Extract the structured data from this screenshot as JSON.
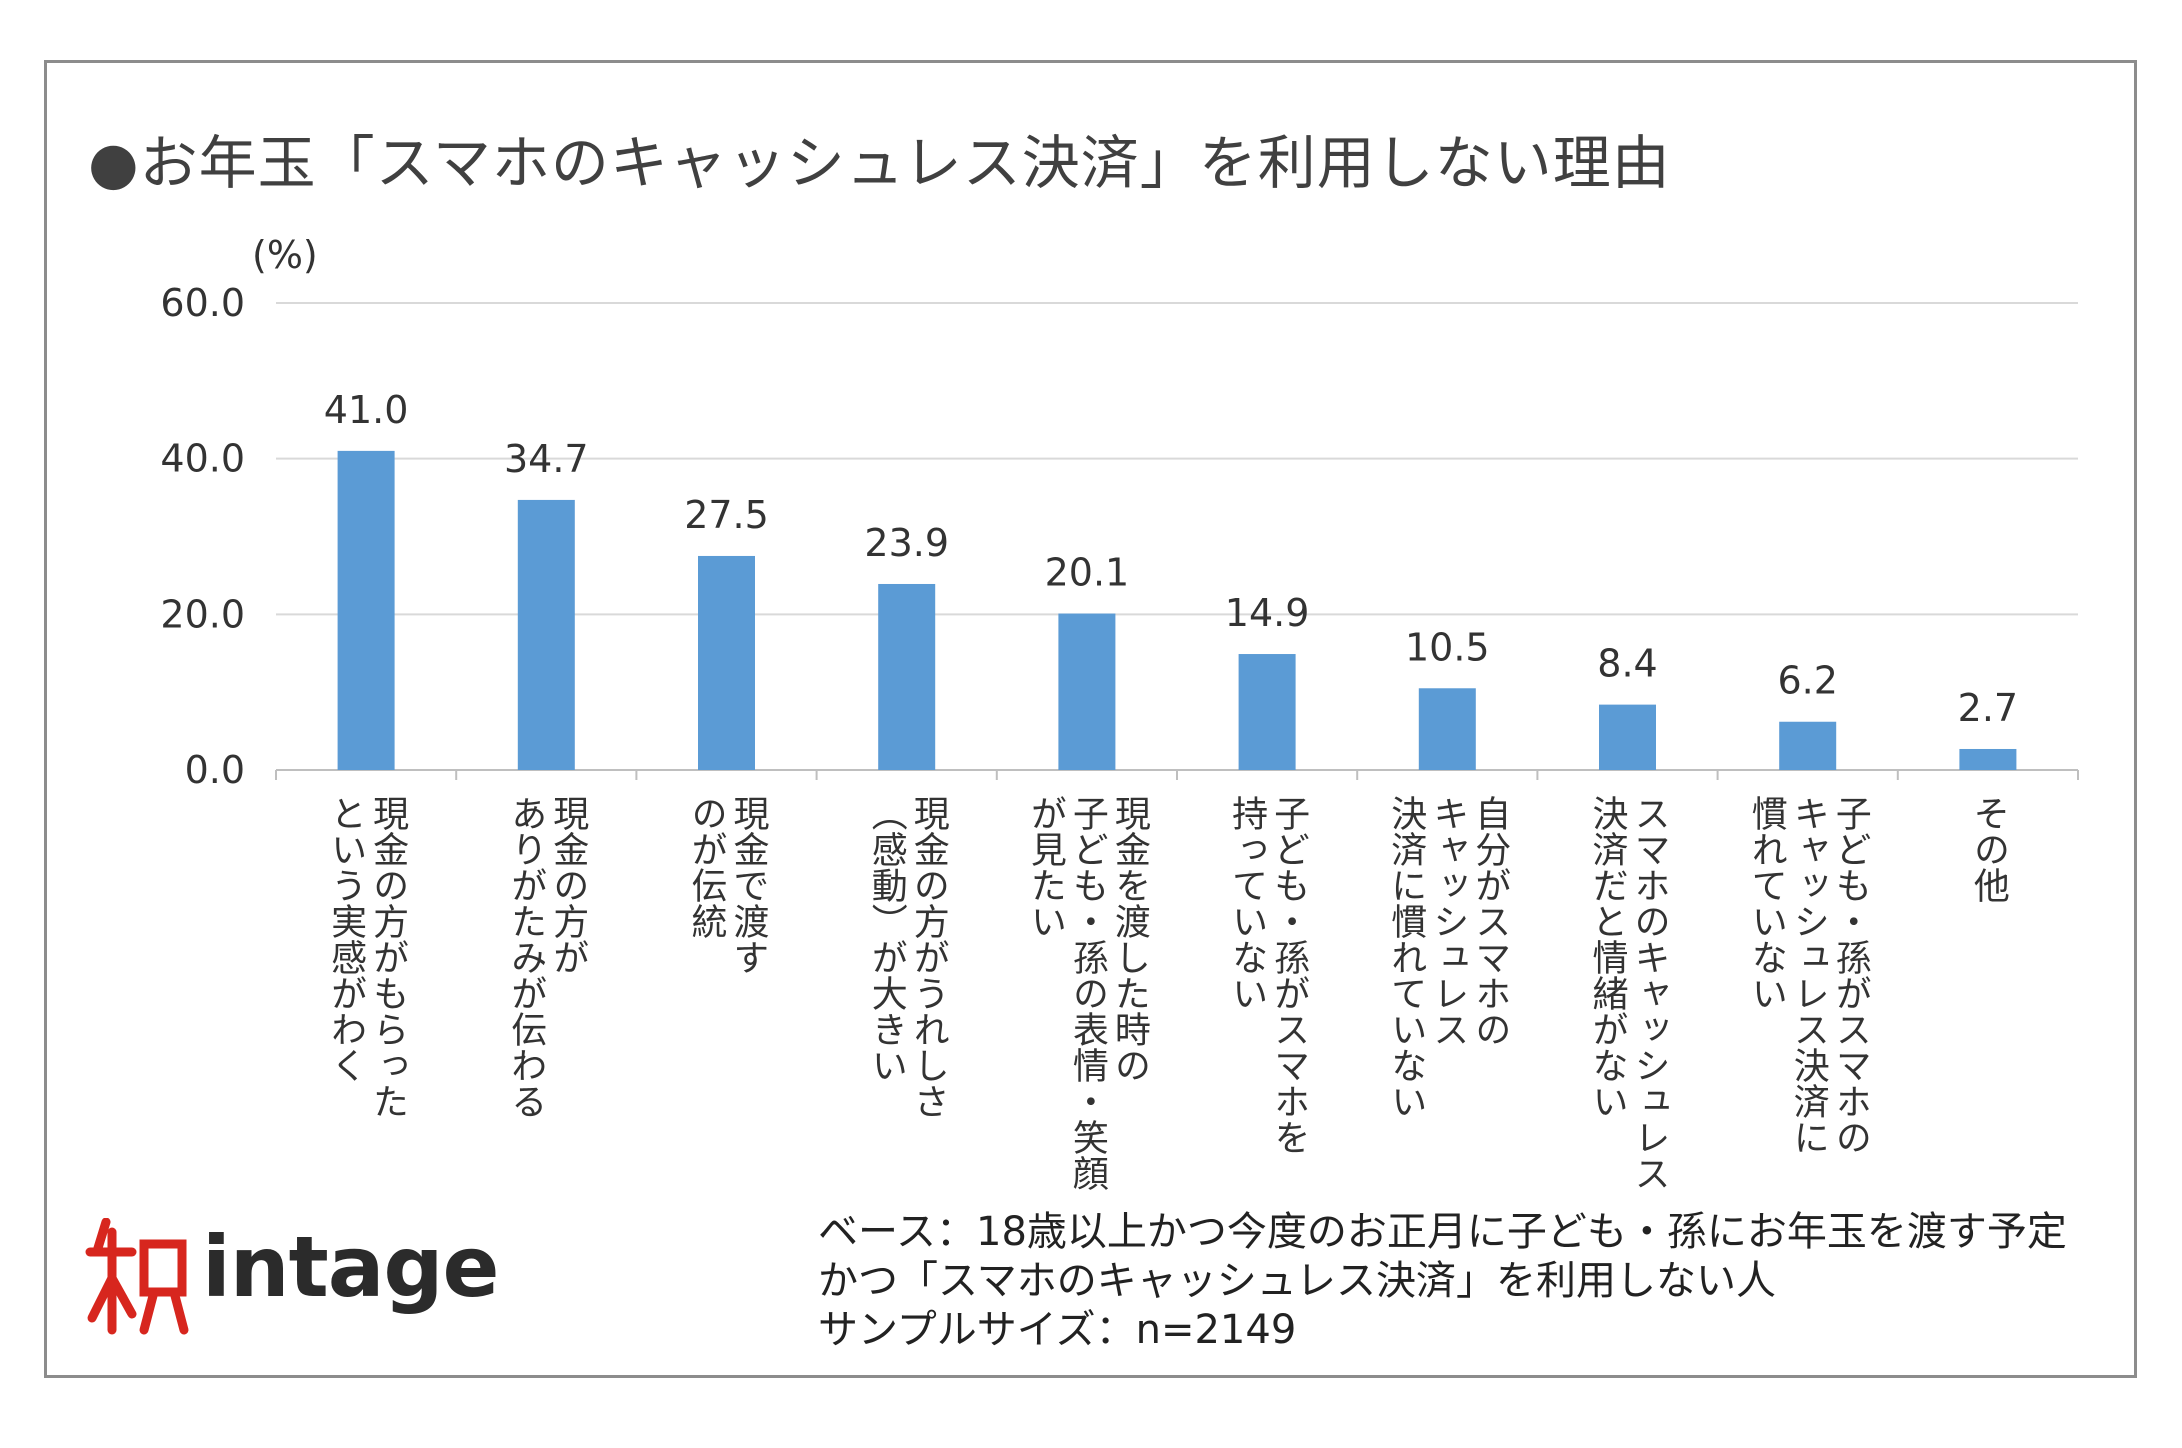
{
  "title": "●お年玉「スマホのキャッシュレス決済」を利用しない理由",
  "chart_data": {
    "type": "bar",
    "title": "●お年玉「スマホのキャッシュレス決済」を利用しない理由",
    "ylabel": "(%)",
    "ylim": [
      0,
      60
    ],
    "yticks": [
      "0.0",
      "20.0",
      "40.0",
      "60.0"
    ],
    "grid": true,
    "bar_color": "#5b9bd5",
    "categories": [
      "現金の方がもらった\nという実感がわく",
      "現金の方が\nありがたみが伝わる",
      "現金で渡す\nのが伝統",
      "現金の方がうれしさ\n（感動）が大きい",
      "現金を渡した時の\n子ども・孫の表情・笑顔\nが見たい",
      "子ども・孫がスマホを\n持っていない",
      "自分がスマホの\nキャッシュレス\n決済に慣れていない",
      "スマホのキャッシュレス\n決済だと情緒がない",
      "子ども・孫がスマホの\nキャッシュレス決済に\n慣れていない",
      "その他"
    ],
    "values": [
      41.0,
      34.7,
      27.5,
      23.9,
      20.1,
      14.9,
      10.5,
      8.4,
      6.2,
      2.7
    ],
    "value_labels": [
      "41.0",
      "34.7",
      "27.5",
      "23.9",
      "20.1",
      "14.9",
      "10.5",
      "8.4",
      "6.2",
      "2.7"
    ]
  },
  "footer": {
    "base_line1": "ベース：18歳以上かつ今度のお正月に子ども・孫にお年玉を渡す予定",
    "base_line2": "かつ「スマホのキャッシュレス決済」を利用しない人",
    "sample_size": "サンプルサイズ：n=2149"
  },
  "logo": {
    "text": "intage",
    "mark": "知",
    "icon": "intage-logo-icon",
    "accent": "#d7261e"
  }
}
